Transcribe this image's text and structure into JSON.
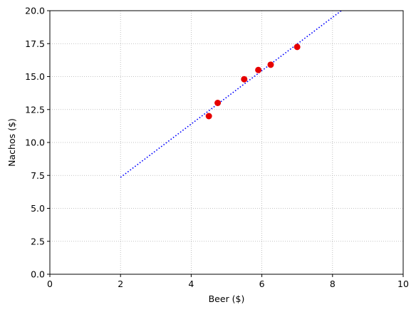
{
  "chart_data": {
    "type": "scatter",
    "title": "",
    "xlabel": "Beer ($)",
    "ylabel": "Nachos ($)",
    "xlim": [
      0,
      10
    ],
    "ylim": [
      0,
      20
    ],
    "x_ticks": [
      0,
      2,
      4,
      6,
      8,
      10
    ],
    "y_ticks": [
      0,
      2.5,
      5,
      7.5,
      10,
      12.5,
      15,
      17.5,
      20
    ],
    "x_tick_labels": [
      "0",
      "2",
      "4",
      "6",
      "8",
      "10"
    ],
    "y_tick_labels": [
      "0.0",
      "2.5",
      "5.0",
      "7.5",
      "10.0",
      "12.5",
      "15.0",
      "17.5",
      "20.0"
    ],
    "grid": true,
    "points": {
      "x": [
        4.5,
        4.75,
        5.5,
        5.9,
        6.25,
        7.0
      ],
      "y": [
        12.0,
        13.0,
        14.8,
        15.5,
        15.9,
        17.25
      ],
      "color": "#e60000"
    },
    "fit_line": {
      "x": [
        2.0,
        8.25
      ],
      "y": [
        7.35,
        20.0
      ],
      "color": "#0000ff",
      "style": "dotted"
    }
  }
}
